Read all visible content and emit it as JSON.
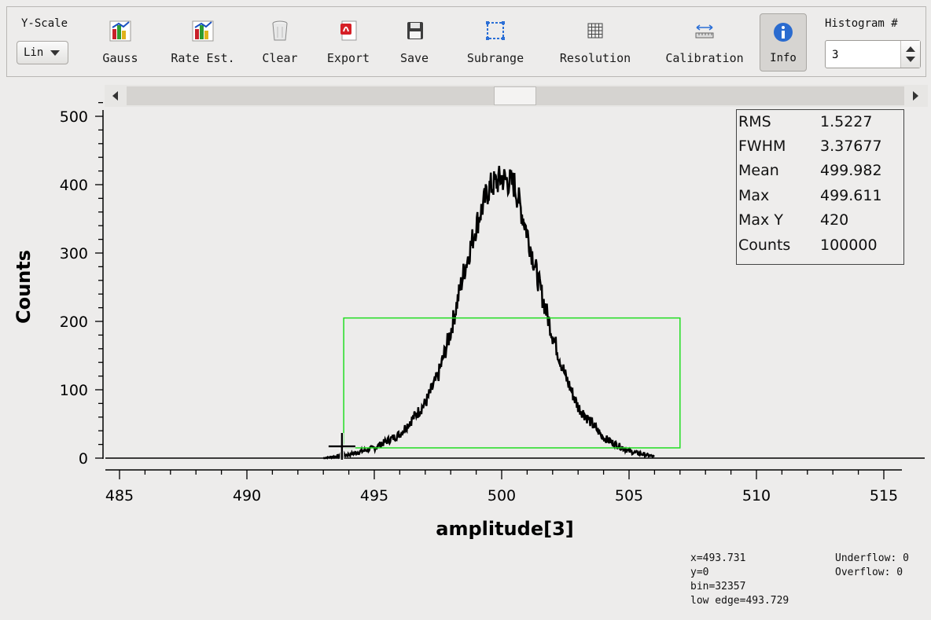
{
  "toolbar": {
    "yscale_label": "Y-Scale",
    "yscale_value": "Lin",
    "buttons": [
      {
        "label": "Gauss",
        "icon": "bar-chart-icon"
      },
      {
        "label": "Rate Est.",
        "icon": "bar-chart-icon"
      },
      {
        "label": "Clear",
        "icon": "trash-can-icon"
      },
      {
        "label": "Export",
        "icon": "pdf-export-icon"
      },
      {
        "label": "Save",
        "icon": "floppy-disk-icon"
      },
      {
        "label": "Subrange",
        "icon": "dashed-rectangle-icon"
      },
      {
        "label": "Resolution",
        "icon": "grid-icon"
      },
      {
        "label": "Calibration",
        "icon": "ruler-icon"
      },
      {
        "label": "Info",
        "icon": "info-icon"
      }
    ],
    "histogram_label": "Histogram #",
    "histogram_value": "3"
  },
  "stats": [
    {
      "key": "RMS",
      "value": "1.5227"
    },
    {
      "key": "FWHM",
      "value": "3.37677"
    },
    {
      "key": "Mean",
      "value": "499.982"
    },
    {
      "key": "Max",
      "value": "499.611"
    },
    {
      "key": "Max Y",
      "value": "420"
    },
    {
      "key": "Counts",
      "value": "100000"
    }
  ],
  "status": {
    "x": "x=493.731",
    "y": "y=0",
    "bin": "bin=32357",
    "low_edge": "low edge=493.729",
    "underflow": "Underflow: 0",
    "overflow": "Overflow:  0"
  },
  "colors": {
    "subrange_box": "#22dd22",
    "histogram": "#000000"
  },
  "chart_data": {
    "type": "line",
    "xlabel": "amplitude[3]",
    "ylabel": "Counts",
    "xlim": [
      484.5,
      516.5
    ],
    "ylim": [
      0,
      520
    ],
    "xticks": [
      485,
      490,
      495,
      500,
      505,
      510,
      515
    ],
    "yticks": [
      0,
      100,
      200,
      300,
      400,
      500
    ],
    "series": [
      {
        "x": [
          493,
          494,
          495,
          496,
          497,
          497.5,
          498,
          498.5,
          499,
          499.5,
          500,
          500.5,
          501,
          501.5,
          502,
          502.5,
          503,
          504,
          505,
          506
        ],
        "values": [
          0,
          5,
          15,
          35,
          80,
          120,
          185,
          270,
          340,
          395,
          410,
          400,
          330,
          250,
          180,
          120,
          75,
          30,
          10,
          2
        ]
      }
    ],
    "subrange_box": {
      "x": [
        493.8,
        507.0
      ],
      "y": [
        15,
        205
      ]
    },
    "cursor": {
      "x": 493.731,
      "y": 0
    }
  }
}
